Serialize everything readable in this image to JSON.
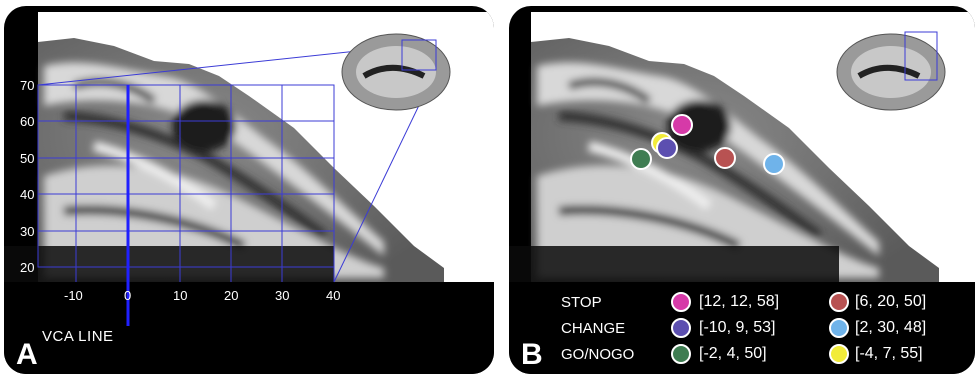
{
  "panel_a": {
    "letter": "A",
    "y_ticks": [
      "70",
      "60",
      "50",
      "40",
      "30",
      "20"
    ],
    "x_ticks": [
      "-10",
      "0",
      "10",
      "20",
      "30",
      "40"
    ],
    "vca_label": "VCA LINE",
    "line_color": "#3b3bd6"
  },
  "panel_b": {
    "letter": "B",
    "tasks": [
      "STOP",
      "CHANGE",
      "GO/NOGO"
    ],
    "legend": [
      {
        "coord": "[12, 12, 58]",
        "color": "#d63aa8"
      },
      {
        "coord": "[6, 20, 50]",
        "color": "#b85252"
      },
      {
        "coord": "[-10, 9, 53]",
        "color": "#5c4fb0"
      },
      {
        "coord": "[2, 30, 48]",
        "color": "#6fb3ea"
      },
      {
        "coord": "[-2, 4, 50]",
        "color": "#3f7d52"
      },
      {
        "coord": "[-4, 7, 55]",
        "color": "#f2ec3a"
      }
    ]
  }
}
